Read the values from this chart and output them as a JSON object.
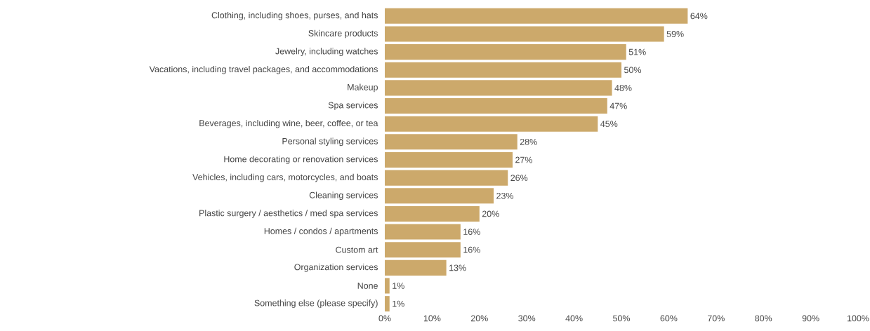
{
  "chart_data": {
    "type": "bar",
    "orientation": "horizontal",
    "color": "#cca96b",
    "categories": [
      "Clothing, including shoes, purses, and hats",
      "Skincare products",
      "Jewelry, including watches",
      "Vacations, including travel packages, and accommodations",
      "Makeup",
      "Spa services",
      "Beverages, including wine, beer, coffee, or tea",
      "Personal styling services",
      "Home decorating or renovation services",
      "Vehicles, including cars, motorcycles, and boats",
      "Cleaning services",
      "Plastic surgery / aesthetics / med spa services",
      "Homes / condos / apartments",
      "Custom art",
      "Organization services",
      "None",
      "Something else (please specify)"
    ],
    "values": [
      64,
      59,
      51,
      50,
      48,
      47,
      45,
      28,
      27,
      26,
      23,
      20,
      16,
      16,
      13,
      1,
      1
    ],
    "value_labels": [
      "64%",
      "59%",
      "51%",
      "50%",
      "48%",
      "47%",
      "45%",
      "28%",
      "27%",
      "26%",
      "23%",
      "20%",
      "16%",
      "16%",
      "13%",
      "1%",
      "1%"
    ],
    "xlim": [
      0,
      100
    ],
    "xticks": [
      {
        "value": 0,
        "label": "0%"
      },
      {
        "value": 10,
        "label": "10%"
      },
      {
        "value": 20,
        "label": "20%"
      },
      {
        "value": 30,
        "label": "30%"
      },
      {
        "value": 40,
        "label": "40%"
      },
      {
        "value": 50,
        "label": "50%"
      },
      {
        "value": 60,
        "label": "60%"
      },
      {
        "value": 70,
        "label": "70%"
      },
      {
        "value": 80,
        "label": "80%"
      },
      {
        "value": 90,
        "label": "90%"
      },
      {
        "value": 100,
        "label": "100%"
      }
    ],
    "grid": false
  }
}
